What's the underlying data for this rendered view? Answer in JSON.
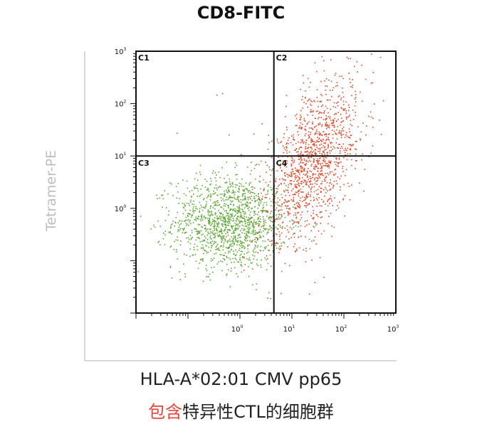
{
  "chart_data": {
    "type": "scatter",
    "title": "CD8-FITC",
    "ylabel": "Tetramer-PE",
    "x_scale": "log",
    "y_scale": "log",
    "xlim": [
      0.01,
      1000
    ],
    "ylim": [
      0.01,
      1000
    ],
    "x_ticks": [
      {
        "base": "10",
        "exp": "0",
        "value": 1
      },
      {
        "base": "10",
        "exp": "1",
        "value": 10
      },
      {
        "base": "10",
        "exp": "2",
        "value": 100
      },
      {
        "base": "10",
        "exp": "3",
        "value": 1000
      }
    ],
    "y_ticks": [
      {
        "base": "10",
        "exp": "0",
        "value": 1
      },
      {
        "base": "10",
        "exp": "1",
        "value": 10
      },
      {
        "base": "10",
        "exp": "2",
        "value": 100
      },
      {
        "base": "10",
        "exp": "3",
        "value": 1000
      }
    ],
    "quadrant_gate": {
      "x": 4.5,
      "y": 10
    },
    "quadrants": [
      {
        "label": "C1",
        "position": "top-left"
      },
      {
        "label": "C2",
        "position": "top-right"
      },
      {
        "label": "C3",
        "position": "bottom-left"
      },
      {
        "label": "C4",
        "position": "bottom-right"
      }
    ],
    "series": [
      {
        "color": "#5aa832",
        "center_log": [
          -0.2,
          -0.25
        ],
        "spread_log": [
          0.55,
          0.45
        ],
        "count": 1400
      },
      {
        "color": "#e04a2a",
        "center_log": [
          1.4,
          0.9
        ],
        "spread_log": [
          0.45,
          0.7
        ],
        "count": 1300
      }
    ],
    "outliers": [
      {
        "x": 0.35,
        "y": 150,
        "color": "#999999"
      },
      {
        "x": 0.45,
        "y": 160,
        "color": "#999999"
      },
      {
        "x": 0.06,
        "y": 28,
        "color": "#999999"
      },
      {
        "x": 0.6,
        "y": 26,
        "color": "#999999"
      },
      {
        "x": 1.8,
        "y": 27,
        "color": "#999999"
      }
    ]
  },
  "caption": {
    "line1": "HLA-A*02:01 CMV pp65",
    "line2_highlight": "包含",
    "line2_rest": "特异性CTL的细胞群"
  },
  "colors": {
    "frame": "#111111",
    "axis_outer": "#cccccc",
    "highlight": "#e8463a"
  }
}
